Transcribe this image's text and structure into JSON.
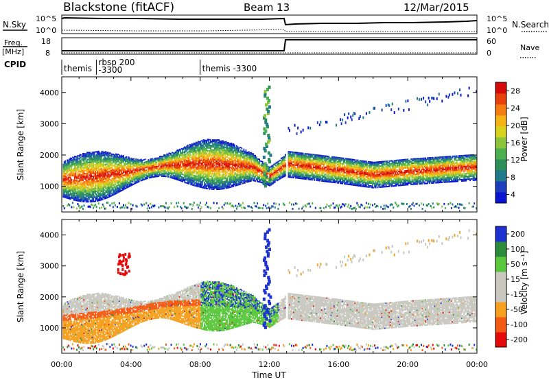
{
  "header": {
    "title": "Blackstone (fitACF)",
    "beam": "Beam 13",
    "date": "12/Mar/2015"
  },
  "panels": {
    "nsky": {
      "label": "N.Sky",
      "ticks": [
        "10^5",
        "10^0"
      ]
    },
    "nsearch": {
      "label": "N.Search",
      "ticks": [
        "10^5",
        "10^0"
      ]
    },
    "freq": {
      "label_top": "Freq.",
      "label_unit": "[MHz]",
      "ticks": [
        "18",
        "8"
      ]
    },
    "nave": {
      "label": "Nave",
      "ticks": [
        "60",
        "0"
      ]
    },
    "cpid": {
      "label": "CPID",
      "segments": [
        {
          "text": "themis",
          "text2": "",
          "t": 0.0
        },
        {
          "text": "rbsp 200",
          "text2": "-3300",
          "t": 2.0
        },
        {
          "text": "themis -3300",
          "text2": "",
          "t": 8.0
        }
      ]
    }
  },
  "chart_data": [
    {
      "type": "heatmap",
      "title": "",
      "xlabel": "",
      "ylabel": "Slant Range [km]",
      "xlim": [
        0,
        24
      ],
      "ylim": [
        180,
        4500
      ],
      "yticks": [
        "1000",
        "2000",
        "3000",
        "4000"
      ],
      "colorbar": {
        "label": "Power [dB]",
        "ticks": [
          "28",
          "24",
          "20",
          "16",
          "12",
          "8",
          "4"
        ],
        "range": [
          0,
          30
        ],
        "colors": [
          "#0a14d2",
          "#1e3cbe",
          "#1f7a8c",
          "#2b8f5a",
          "#4caf50",
          "#8cc43c",
          "#d6d21e",
          "#f5b316",
          "#f57c10",
          "#e8420c",
          "#d70a0a"
        ]
      },
      "features": [
        {
          "name": "main band",
          "x": [
            0,
            2,
            4,
            6,
            8,
            10,
            11,
            12,
            13,
            16,
            18,
            20,
            24
          ],
          "y": [
            1200,
            1300,
            1450,
            1650,
            1700,
            1650,
            1600,
            1300,
            1700,
            1500,
            1350,
            1450,
            1600
          ]
        },
        {
          "name": "spike",
          "x": [
            11.8
          ],
          "y": [
            4200
          ]
        }
      ]
    },
    {
      "type": "heatmap",
      "title": "",
      "xlabel": "Time UT",
      "ylabel": "Slant Range [km]",
      "xlim": [
        0,
        24
      ],
      "ylim": [
        180,
        4500
      ],
      "yticks": [
        "1000",
        "2000",
        "3000",
        "4000"
      ],
      "xticks": [
        "00:00",
        "04:00",
        "08:00",
        "12:00",
        "16:00",
        "20:00",
        "00:00"
      ],
      "colorbar": {
        "label": "Velocity [m s⁻¹]",
        "ticks": [
          "200",
          "100",
          "50",
          "15",
          "-15",
          "-50",
          "-100",
          "-200"
        ],
        "range": [
          -250,
          250
        ],
        "colors": [
          "#e60a0a",
          "#f55a14",
          "#f5a01e",
          "#c8c8c0",
          "#c8c8c0",
          "#5ac83c",
          "#2c8c3c",
          "#1e32d2"
        ]
      }
    }
  ]
}
